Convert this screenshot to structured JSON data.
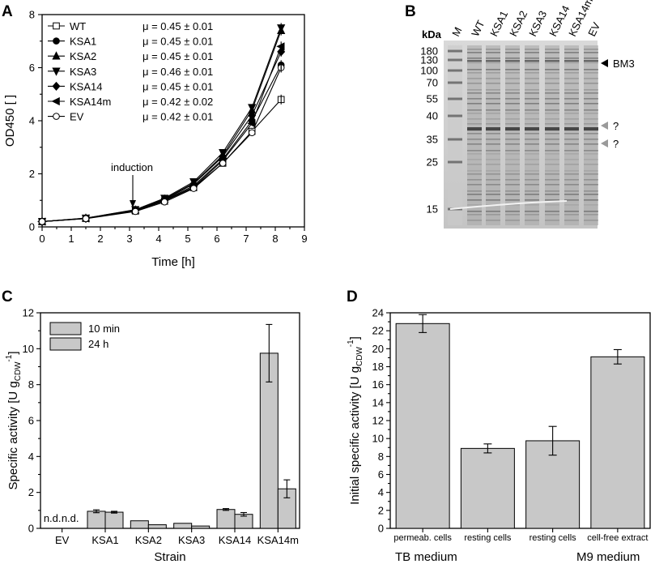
{
  "panels": {
    "a": "A",
    "b": "B",
    "c": "C",
    "d": "D"
  },
  "chart_data": [
    {
      "id": "A",
      "type": "line",
      "xlabel": "Time [h]",
      "ylabel": "OD450 [ ]",
      "xlim": [
        0,
        9
      ],
      "ylim": [
        0,
        8
      ],
      "xticks": [
        "0",
        "1",
        "2",
        "3",
        "4",
        "5",
        "6",
        "7",
        "8",
        "9"
      ],
      "yticks": [
        "0",
        "2",
        "4",
        "6",
        "8"
      ],
      "annotation": "induction",
      "annotation_x": 3.2,
      "annotation_y": 0.85,
      "x": [
        0,
        1.5,
        3.2,
        4.2,
        5.2,
        6.2,
        7.2,
        8.2
      ],
      "series": [
        {
          "name": "WT",
          "mu": "μ = 0.45 ± 0.01",
          "marker": "square-open",
          "values": [
            0.2,
            0.32,
            0.6,
            0.98,
            1.48,
            2.4,
            3.6,
            4.8
          ]
        },
        {
          "name": "KSA1",
          "mu": "μ = 0.45 ± 0.01",
          "marker": "circle",
          "values": [
            0.2,
            0.32,
            0.62,
            1.0,
            1.55,
            2.55,
            4.0,
            6.1
          ]
        },
        {
          "name": "KSA2",
          "mu": "μ = 0.45 ± 0.01",
          "marker": "triangle-up",
          "values": [
            0.2,
            0.33,
            0.64,
            1.05,
            1.65,
            2.7,
            4.4,
            7.4
          ]
        },
        {
          "name": "KSA3",
          "mu": "μ = 0.46 ± 0.01",
          "marker": "triangle-down",
          "values": [
            0.2,
            0.33,
            0.65,
            1.08,
            1.7,
            2.8,
            4.5,
            7.5
          ]
        },
        {
          "name": "KSA14",
          "mu": "μ = 0.45 ± 0.01",
          "marker": "diamond",
          "values": [
            0.2,
            0.32,
            0.62,
            1.02,
            1.62,
            2.65,
            4.2,
            6.6
          ]
        },
        {
          "name": "KSA14m",
          "mu": "μ = 0.42 ± 0.02",
          "marker": "triangle-left",
          "values": [
            0.2,
            0.32,
            0.61,
            0.98,
            1.5,
            2.5,
            3.9,
            6.8
          ]
        },
        {
          "name": "EV",
          "mu": "μ = 0.42 ± 0.01",
          "marker": "circle-open",
          "values": [
            0.2,
            0.31,
            0.58,
            0.94,
            1.45,
            2.4,
            3.55,
            6.0
          ]
        }
      ]
    },
    {
      "id": "B",
      "type": "gel",
      "ylabel": "kDa",
      "lanes": [
        "M",
        "WT",
        "KSA1",
        "KSA2",
        "KSA3",
        "KSA14",
        "KSA14m",
        "EV"
      ],
      "markers_kda": [
        "180",
        "130",
        "100",
        "70",
        "55",
        "40",
        "35",
        "25",
        "15"
      ],
      "annotations": [
        {
          "label": "BM3",
          "kda": 120,
          "arrow": "black"
        },
        {
          "label": "?",
          "kda": 40,
          "arrow": "gray"
        },
        {
          "label": "?",
          "kda": 34,
          "arrow": "gray"
        }
      ]
    },
    {
      "id": "C",
      "type": "bar",
      "xlabel": "Strain",
      "ylabel_main": "Specific activity [U g",
      "ylabel_sub": "CDW",
      "ylabel_sup": "-1",
      "ylabel_end": "]",
      "ylim": [
        0,
        12
      ],
      "yticks": [
        "0",
        "2",
        "4",
        "6",
        "8",
        "10",
        "12"
      ],
      "categories": [
        "EV",
        "KSA1",
        "KSA2",
        "KSA3",
        "KSA14",
        "KSA14m"
      ],
      "nd_label": "n.d.",
      "series": [
        {
          "name": "10 min",
          "pattern": "solid",
          "values": [
            null,
            0.95,
            0.42,
            0.28,
            1.05,
            9.75
          ],
          "errors": [
            0,
            0.08,
            0,
            0,
            0.05,
            1.6
          ]
        },
        {
          "name": "24 h",
          "pattern": "hatched",
          "values": [
            null,
            0.9,
            0.2,
            0.13,
            0.78,
            2.2
          ],
          "errors": [
            0,
            0.05,
            0,
            0,
            0.1,
            0.5
          ]
        }
      ]
    },
    {
      "id": "D",
      "type": "bar",
      "ylabel_main": "Initial specific activity [U g",
      "ylabel_sub": "CDW",
      "ylabel_sup": "-1",
      "ylabel_end": "]",
      "ylim": [
        0,
        24
      ],
      "yticks": [
        "0",
        "2",
        "4",
        "6",
        "8",
        "10",
        "12",
        "14",
        "16",
        "18",
        "20",
        "22",
        "24"
      ],
      "categories": [
        "permeab. cells",
        "resting cells",
        "resting cells",
        "cell-free extract"
      ],
      "values": [
        22.8,
        8.9,
        9.75,
        19.1
      ],
      "errors": [
        1.0,
        0.5,
        1.6,
        0.8
      ],
      "groups": [
        "TB medium",
        "M9 medium"
      ]
    }
  ]
}
